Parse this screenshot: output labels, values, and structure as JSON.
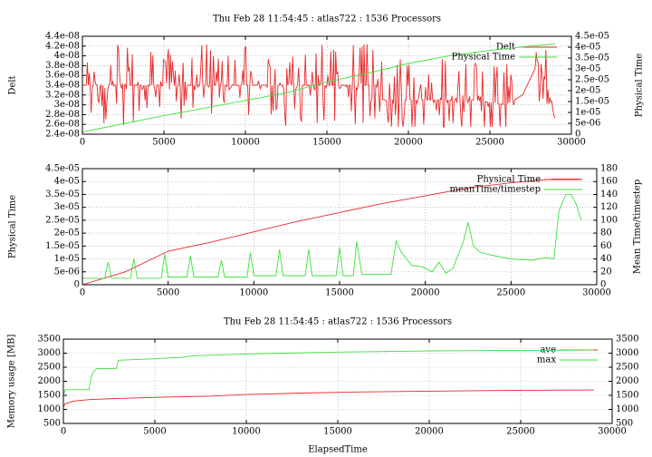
{
  "colors": {
    "red": "#e8282a",
    "green": "#3ee03e",
    "axis": "#000000",
    "grid": "#a0a0a0"
  },
  "chart_data": [
    {
      "type": "line",
      "title": "Thu Feb 28 11:54:45 : atlas722 : 1536 Processors",
      "xlabel": "",
      "ylabel": "Delt",
      "y2label": "Physical Time",
      "xlim": [
        0,
        30000
      ],
      "ylim": [
        2.4e-08,
        4.4e-08
      ],
      "y2lim": [
        0,
        4.5e-05
      ],
      "x_ticks": [
        0,
        5000,
        10000,
        15000,
        20000,
        25000,
        30000
      ],
      "x_tick_labels": [
        "0",
        "5000",
        "10000",
        "15000",
        "20000",
        "25000",
        "30000"
      ],
      "y_ticks": [
        2.4e-08,
        2.6e-08,
        2.8e-08,
        3e-08,
        3.2e-08,
        3.4e-08,
        3.6e-08,
        3.8e-08,
        4e-08,
        4.2e-08,
        4.4e-08
      ],
      "y_tick_labels": [
        "2.4e-08",
        "2.6e-08",
        "2.8e-08",
        "3e-08",
        "3.2e-08",
        "3.4e-08",
        "3.6e-08",
        "3.8e-08",
        "4e-08",
        "4.2e-08",
        "4.4e-08"
      ],
      "y2_ticks": [
        0,
        5e-06,
        1e-05,
        1.5e-05,
        2e-05,
        2.5e-05,
        3e-05,
        3.5e-05,
        4e-05,
        4.5e-05
      ],
      "y2_tick_labels": [
        "0",
        "5e-06",
        "1e-05",
        "1.5e-05",
        "2e-05",
        "2.5e-05",
        "3e-05",
        "3.5e-05",
        "4e-05",
        "4.5e-05"
      ],
      "grid": true,
      "legend_position": "top-right",
      "series": [
        {
          "name": "Delt",
          "color": "red",
          "axis": "left",
          "pattern": "noisy",
          "x": [
            0,
            2000,
            4000,
            6000,
            8000,
            10000,
            12000,
            14000,
            16000,
            18000,
            18500,
            20000,
            22000,
            24000,
            26000,
            27000,
            28000,
            28500,
            29000
          ],
          "y": [
            3.4e-08,
            3.4e-08,
            3.4e-08,
            3.4e-08,
            3.4e-08,
            3.4e-08,
            3.4e-08,
            3.4e-08,
            3.4e-08,
            3.4e-08,
            3.1e-08,
            3.1e-08,
            3.1e-08,
            3.1e-08,
            3e-08,
            3.2e-08,
            3.9e-08,
            3.4e-08,
            2.7e-08
          ]
        },
        {
          "name": "Physical Time",
          "color": "green",
          "axis": "right",
          "x": [
            0,
            2500,
            5000,
            7500,
            10000,
            12500,
            15000,
            17500,
            20000,
            22500,
            25000,
            27500,
            29000
          ],
          "y": [
            1e-06,
            4.8e-06,
            8.5e-06,
            1.2e-05,
            1.55e-05,
            1.9e-05,
            2.4e-05,
            2.8e-05,
            3.25e-05,
            3.6e-05,
            3.85e-05,
            4.05e-05,
            4.15e-05
          ]
        }
      ]
    },
    {
      "type": "line",
      "title": "",
      "xlabel": "",
      "ylabel": "Physical Time",
      "y2label": "Mean Time/timestep",
      "xlim": [
        0,
        30000
      ],
      "ylim": [
        0,
        4.5e-05
      ],
      "y2lim": [
        0,
        180
      ],
      "x_ticks": [
        0,
        5000,
        10000,
        15000,
        20000,
        25000,
        30000
      ],
      "x_tick_labels": [
        "0",
        "5000",
        "10000",
        "15000",
        "20000",
        "25000",
        "30000"
      ],
      "y_ticks": [
        0,
        5e-06,
        1e-05,
        1.5e-05,
        2e-05,
        2.5e-05,
        3e-05,
        3.5e-05,
        4e-05,
        4.5e-05
      ],
      "y_tick_labels": [
        "0",
        "5e-06",
        "1e-05",
        "1.5e-05",
        "2e-05",
        "2.5e-05",
        "3e-05",
        "3.5e-05",
        "4e-05",
        "4.5e-05"
      ],
      "y2_ticks": [
        0,
        20,
        40,
        60,
        80,
        100,
        120,
        140,
        160,
        180
      ],
      "y2_tick_labels": [
        "0",
        "20",
        "40",
        "60",
        "80",
        "100",
        "120",
        "140",
        "160",
        "180"
      ],
      "grid": true,
      "legend_position": "top-right",
      "series": [
        {
          "name": "Physical Time",
          "color": "red",
          "axis": "left",
          "x": [
            0,
            2500,
            5000,
            7500,
            10000,
            12500,
            15000,
            17500,
            20000,
            22500,
            25000,
            27500,
            29000
          ],
          "y": [
            0,
            5e-06,
            1.3e-05,
            1.65e-05,
            2.05e-05,
            2.45e-05,
            2.8e-05,
            3.15e-05,
            3.45e-05,
            3.75e-05,
            3.95e-05,
            4.1e-05,
            4.1e-05
          ]
        },
        {
          "name": "meanTime/timestep",
          "color": "green",
          "axis": "right",
          "x": [
            0,
            1300,
            1500,
            1700,
            2800,
            3000,
            3200,
            4600,
            4800,
            5000,
            6100,
            6300,
            6500,
            7900,
            8100,
            8300,
            9600,
            9800,
            10000,
            11300,
            11500,
            11700,
            13000,
            13200,
            13400,
            14800,
            15000,
            15200,
            15800,
            16000,
            16300,
            18000,
            18300,
            18600,
            19200,
            19800,
            20400,
            20800,
            21200,
            21600,
            22200,
            22500,
            22800,
            23200,
            24000,
            25000,
            26200,
            27000,
            27500,
            27800,
            28200,
            28500,
            28800,
            29100
          ],
          "y": [
            10,
            10,
            35,
            10,
            10,
            40,
            10,
            10,
            48,
            12,
            12,
            45,
            12,
            12,
            38,
            12,
            12,
            50,
            14,
            14,
            55,
            14,
            14,
            55,
            14,
            14,
            58,
            14,
            14,
            67,
            16,
            16,
            68,
            50,
            30,
            28,
            20,
            35,
            18,
            25,
            65,
            97,
            60,
            50,
            45,
            40,
            38,
            42,
            40,
            115,
            140,
            140,
            125,
            100
          ]
        }
      ]
    },
    {
      "type": "line",
      "title": "Thu Feb 28 11:54:45 : atlas722 : 1536 Processors",
      "xlabel": "ElapsedTime",
      "ylabel": "Memory usage [MB]",
      "y2label": "",
      "xlim": [
        0,
        30000
      ],
      "ylim": [
        500,
        3500
      ],
      "y2lim": [
        500,
        3500
      ],
      "x_ticks": [
        0,
        5000,
        10000,
        15000,
        20000,
        25000,
        30000
      ],
      "x_tick_labels": [
        "0",
        "5000",
        "10000",
        "15000",
        "20000",
        "25000",
        "30000"
      ],
      "y_ticks": [
        500,
        1000,
        1500,
        2000,
        2500,
        3000,
        3500
      ],
      "y_tick_labels": [
        "500",
        "1000",
        "1500",
        "2000",
        "2500",
        "3000",
        "3500"
      ],
      "y2_ticks": [
        500,
        1000,
        1500,
        2000,
        2500,
        3000,
        3500
      ],
      "y2_tick_labels": [
        "500",
        "1000",
        "1500",
        "2000",
        "2500",
        "3000",
        "3500"
      ],
      "grid": true,
      "legend_position": "top-right",
      "series": [
        {
          "name": "ave",
          "color": "red",
          "axis": "left",
          "x": [
            0,
            100,
            600,
            1500,
            3000,
            5000,
            8000,
            10000,
            13000,
            16000,
            20000,
            25000,
            29000
          ],
          "y": [
            1100,
            1200,
            1300,
            1350,
            1390,
            1430,
            1470,
            1530,
            1580,
            1620,
            1650,
            1680,
            1690
          ]
        },
        {
          "name": "max",
          "color": "green",
          "axis": "left",
          "x": [
            0,
            100,
            1400,
            1500,
            1600,
            1800,
            2900,
            3000,
            5000,
            6500,
            7000,
            9000,
            10000,
            12000,
            15000,
            18000,
            20000,
            25000,
            29000
          ],
          "y": [
            1500,
            1700,
            1700,
            2100,
            2300,
            2450,
            2450,
            2750,
            2800,
            2850,
            2900,
            2950,
            2970,
            3000,
            3040,
            3060,
            3080,
            3100,
            3110
          ]
        }
      ]
    }
  ]
}
